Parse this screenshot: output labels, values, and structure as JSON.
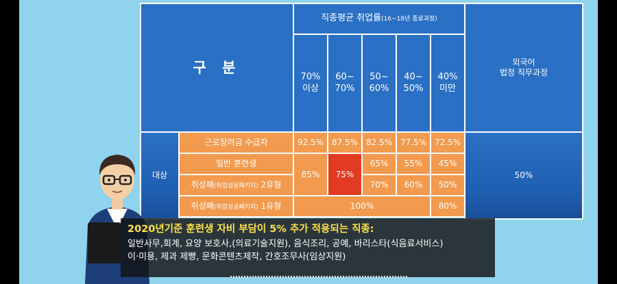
{
  "colors": {
    "blue": "#2a70c4",
    "orange": "#f29a4e",
    "red": "#e23b23",
    "bg": "#8fd3ec",
    "caption_title": "#ffe14a"
  },
  "table": {
    "corner_label": "구  분",
    "group_header": "직종평균 취업률",
    "group_header_note": "(16~18년 종료과정)",
    "columns": [
      "70%\n이상",
      "60~\n70%",
      "50~\n60%",
      "40~\n50%",
      "40%\n미만"
    ],
    "foreign_header": "외국어\n법정 직무과정",
    "target_label": "대상",
    "rows": [
      {
        "label": "근로장려금 수급자",
        "label_note": "",
        "values": [
          "92.5%",
          "87.5%",
          "82.5%",
          "77.5%",
          "72.5%"
        ]
      },
      {
        "label": "일반 훈련생",
        "label_note": "",
        "values": [
          "",
          "75%",
          "65%",
          "55%",
          "45%"
        ]
      },
      {
        "label_prefix": "취성패",
        "label_note": "(취업성공패키지)",
        "label_suffix": " 2유형",
        "values": [
          "",
          "",
          "70%",
          "60%",
          "50%"
        ]
      },
      {
        "label_prefix": "취성패",
        "label_note": "(취업성공패키지)",
        "label_suffix": " 1유형",
        "values": [
          "",
          "",
          "",
          "",
          "80%"
        ]
      }
    ],
    "merged_85": "85%",
    "merged_100": "100%",
    "foreign_value": "50%"
  },
  "caption": {
    "title": "2020년기준 훈련생 자비 부담이 5% 추가 적용되는 직종:",
    "line1": "일반사무,회계, 요양 보호사,(의료기술지원), 음식조리, 공예, 바리스타(식음료서비스)",
    "line2": "이·미용, 제과 제빵, 문화콘텐츠제작, 간호조무사(임상지원)"
  }
}
